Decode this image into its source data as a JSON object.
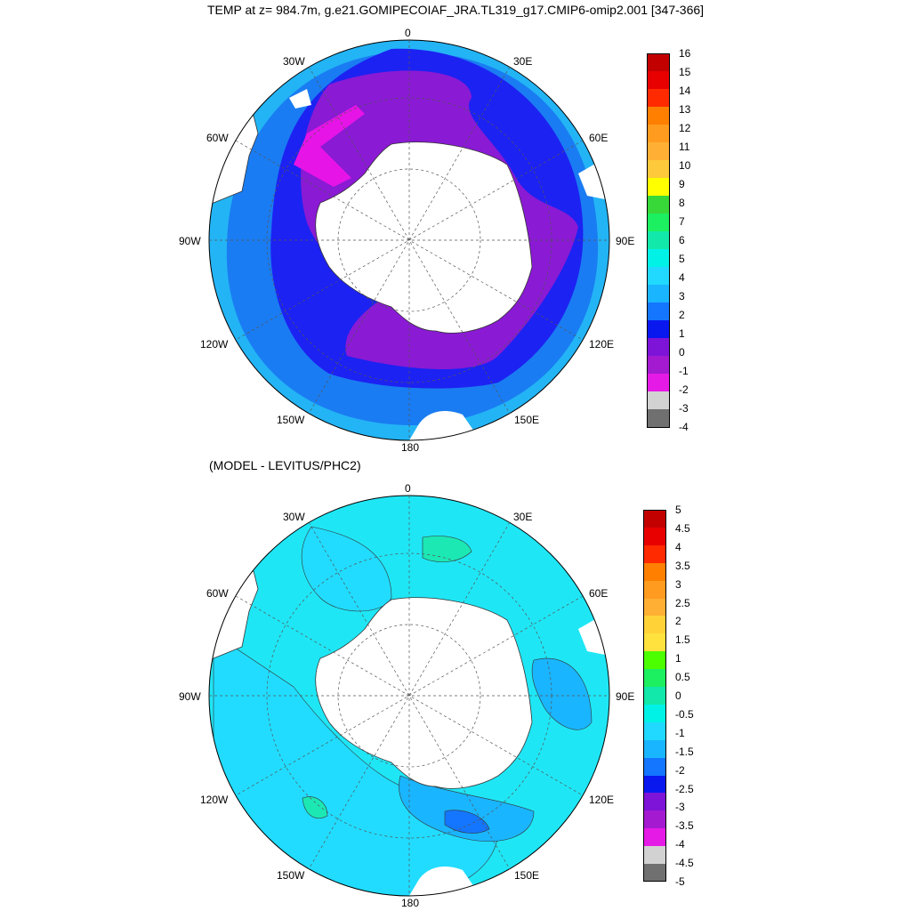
{
  "title": "TEMP at z= 984.7m, g.e21.GOMIPECOIAF_JRA.TL319_g17.CMIP6-omip2.001 [347-366]",
  "subtitle": "(MODEL - LEVITUS/PHC2)",
  "longitude_labels": {
    "top": "0",
    "upper_left": "30W",
    "upper_right": "30E",
    "left_upper": "60W",
    "right_upper": "60E",
    "left": "90W",
    "right": "90E",
    "left_lower": "120W",
    "right_lower": "120E",
    "lower_left": "150W",
    "lower_right": "150E",
    "bottom": "180"
  },
  "top_colorbar": {
    "labels": [
      "16",
      "15",
      "14",
      "13",
      "12",
      "11",
      "10",
      "9",
      "8",
      "7",
      "6",
      "5",
      "4",
      "3",
      "2",
      "1",
      "0",
      "-1",
      "-2",
      "-3",
      "-4"
    ],
    "colors": [
      "#c20000",
      "#e80000",
      "#ff2a00",
      "#ff7f00",
      "#ff9b1f",
      "#ffb034",
      "#ffc93c",
      "#ffff00",
      "#38d838",
      "#1cf060",
      "#12e8aa",
      "#00f2e6",
      "#21d9ff",
      "#1ab5ff",
      "#1476ff",
      "#0a18f0",
      "#7d14d8",
      "#a41ad0",
      "#e61ae6",
      "#d2d2d2",
      "#707070"
    ]
  },
  "bottom_colorbar": {
    "labels": [
      "5",
      "4.5",
      "4",
      "3.5",
      "3",
      "2.5",
      "2",
      "1.5",
      "1",
      "0.5",
      "0",
      "-0.5",
      "-1",
      "-1.5",
      "-2",
      "-2.5",
      "-3",
      "-3.5",
      "-4",
      "-4.5",
      "-5"
    ],
    "colors": [
      "#c20000",
      "#e80000",
      "#ff2a00",
      "#ff7f00",
      "#ff9b1f",
      "#ffb034",
      "#ffd338",
      "#ffe23e",
      "#4cff00",
      "#1cf060",
      "#12e8aa",
      "#00f2e6",
      "#21d9ff",
      "#1ab5ff",
      "#1476ff",
      "#0a18f0",
      "#7d14d8",
      "#a41ad0",
      "#e61ae6",
      "#d2d2d2",
      "#707070"
    ]
  },
  "map_colors": {
    "land": "#ffffff",
    "deep_blue": "#1c22f2",
    "mid_blue": "#1a7cf2",
    "light_blue": "#23b4f5",
    "purple": "#8a1ad4",
    "magenta": "#e614e6",
    "cyan": "#1fe6f5",
    "pale_cyan": "#21dcff",
    "teal": "#1ce8b4"
  }
}
